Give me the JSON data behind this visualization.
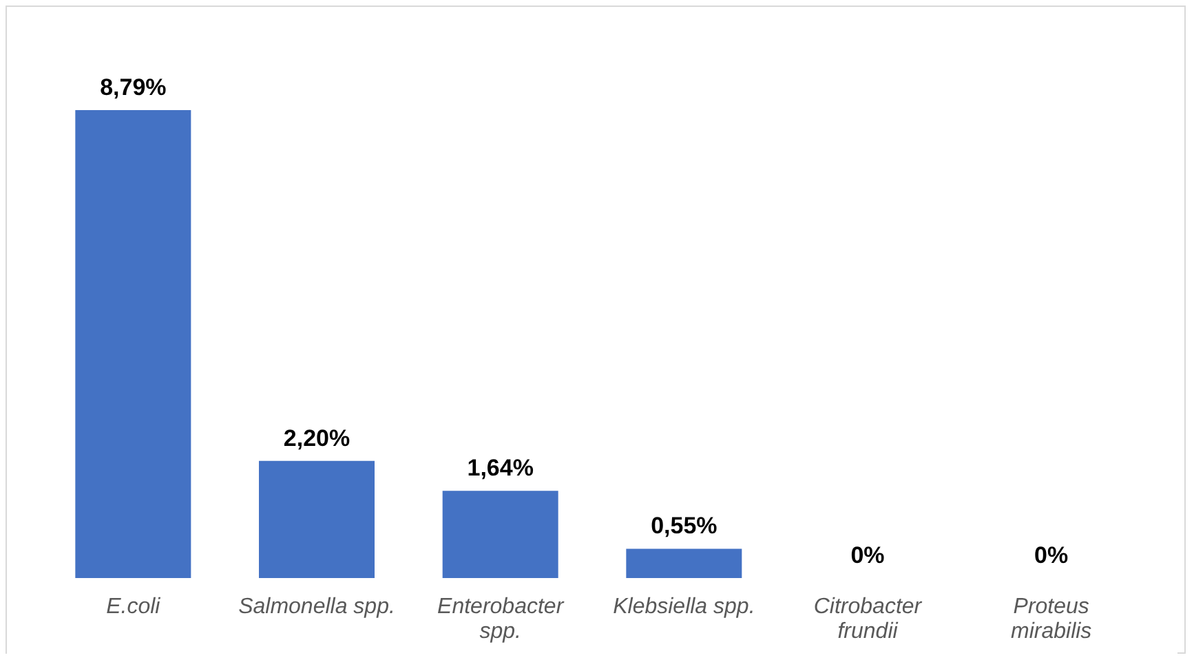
{
  "chart_data": {
    "type": "bar",
    "categories": [
      "E.coli",
      "Salmonella spp.",
      "Enterobacter spp.",
      "Klebsiella spp.",
      "Citrobacter frundii",
      "Proteus mirabilis"
    ],
    "values": [
      8.79,
      2.2,
      1.64,
      0.55,
      0,
      0
    ],
    "value_labels": [
      "8,79%",
      "2,20%",
      "1,64%",
      "0,55%",
      "0%",
      "0%"
    ],
    "color": "#4472c4"
  }
}
